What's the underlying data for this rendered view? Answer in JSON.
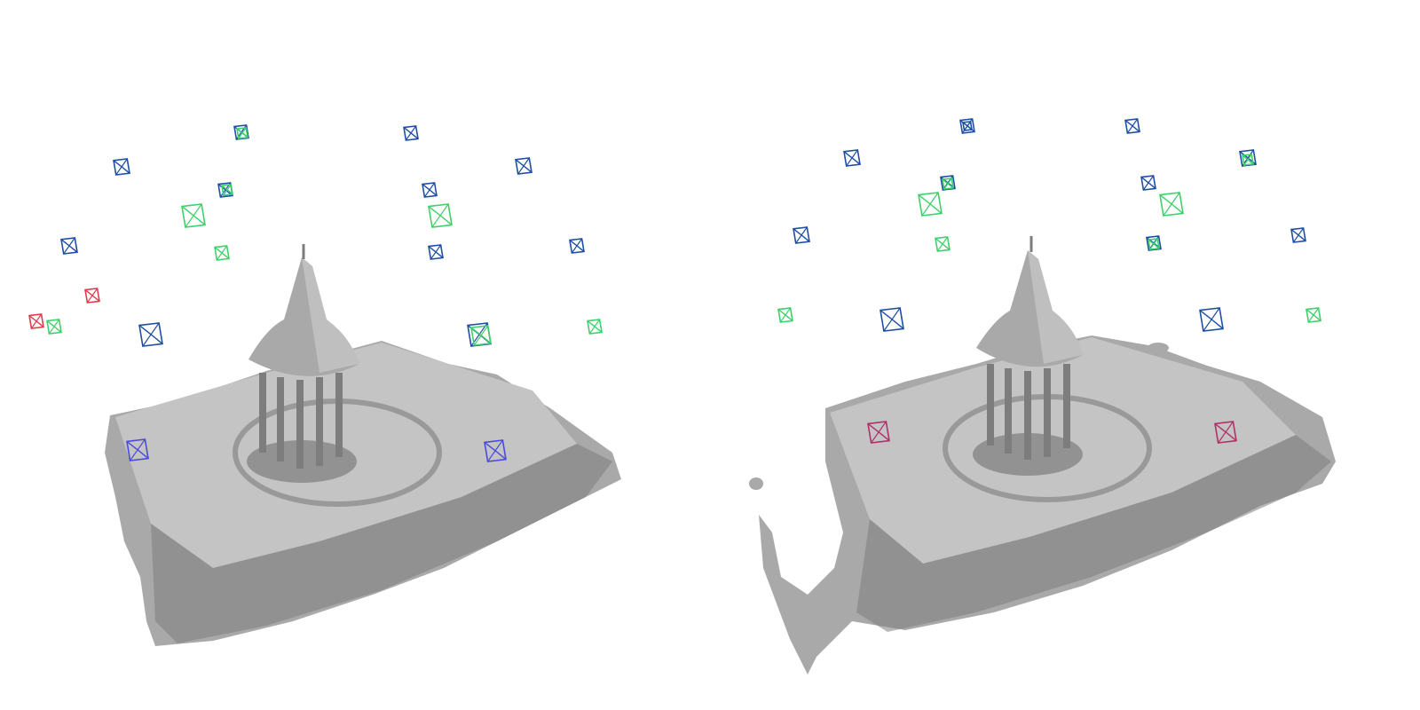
{
  "figure": {
    "colors": {
      "background": "#ffffff",
      "mesh_fill": "#a9a9a9",
      "mesh_light": "#c4c4c4",
      "mesh_dark": "#7d7d7d",
      "camera_blue": "#1f4fa3",
      "camera_green": "#3fd06a",
      "camera_red": "#e33b4e",
      "camera_violet": "#4a4adf",
      "camera_magenta": "#b0306a"
    },
    "panels": [
      {
        "id": "left",
        "camera_groups": [
          {
            "color": "camera_blue",
            "count": 11
          },
          {
            "color": "camera_green",
            "count": 9
          },
          {
            "color": "camera_red",
            "count": 2
          },
          {
            "color": "camera_violet",
            "count": 2
          }
        ]
      },
      {
        "id": "right",
        "camera_groups": [
          {
            "color": "camera_blue",
            "count": 12
          },
          {
            "color": "camera_green",
            "count": 8
          },
          {
            "color": "camera_magenta",
            "count": 2
          }
        ]
      }
    ]
  }
}
